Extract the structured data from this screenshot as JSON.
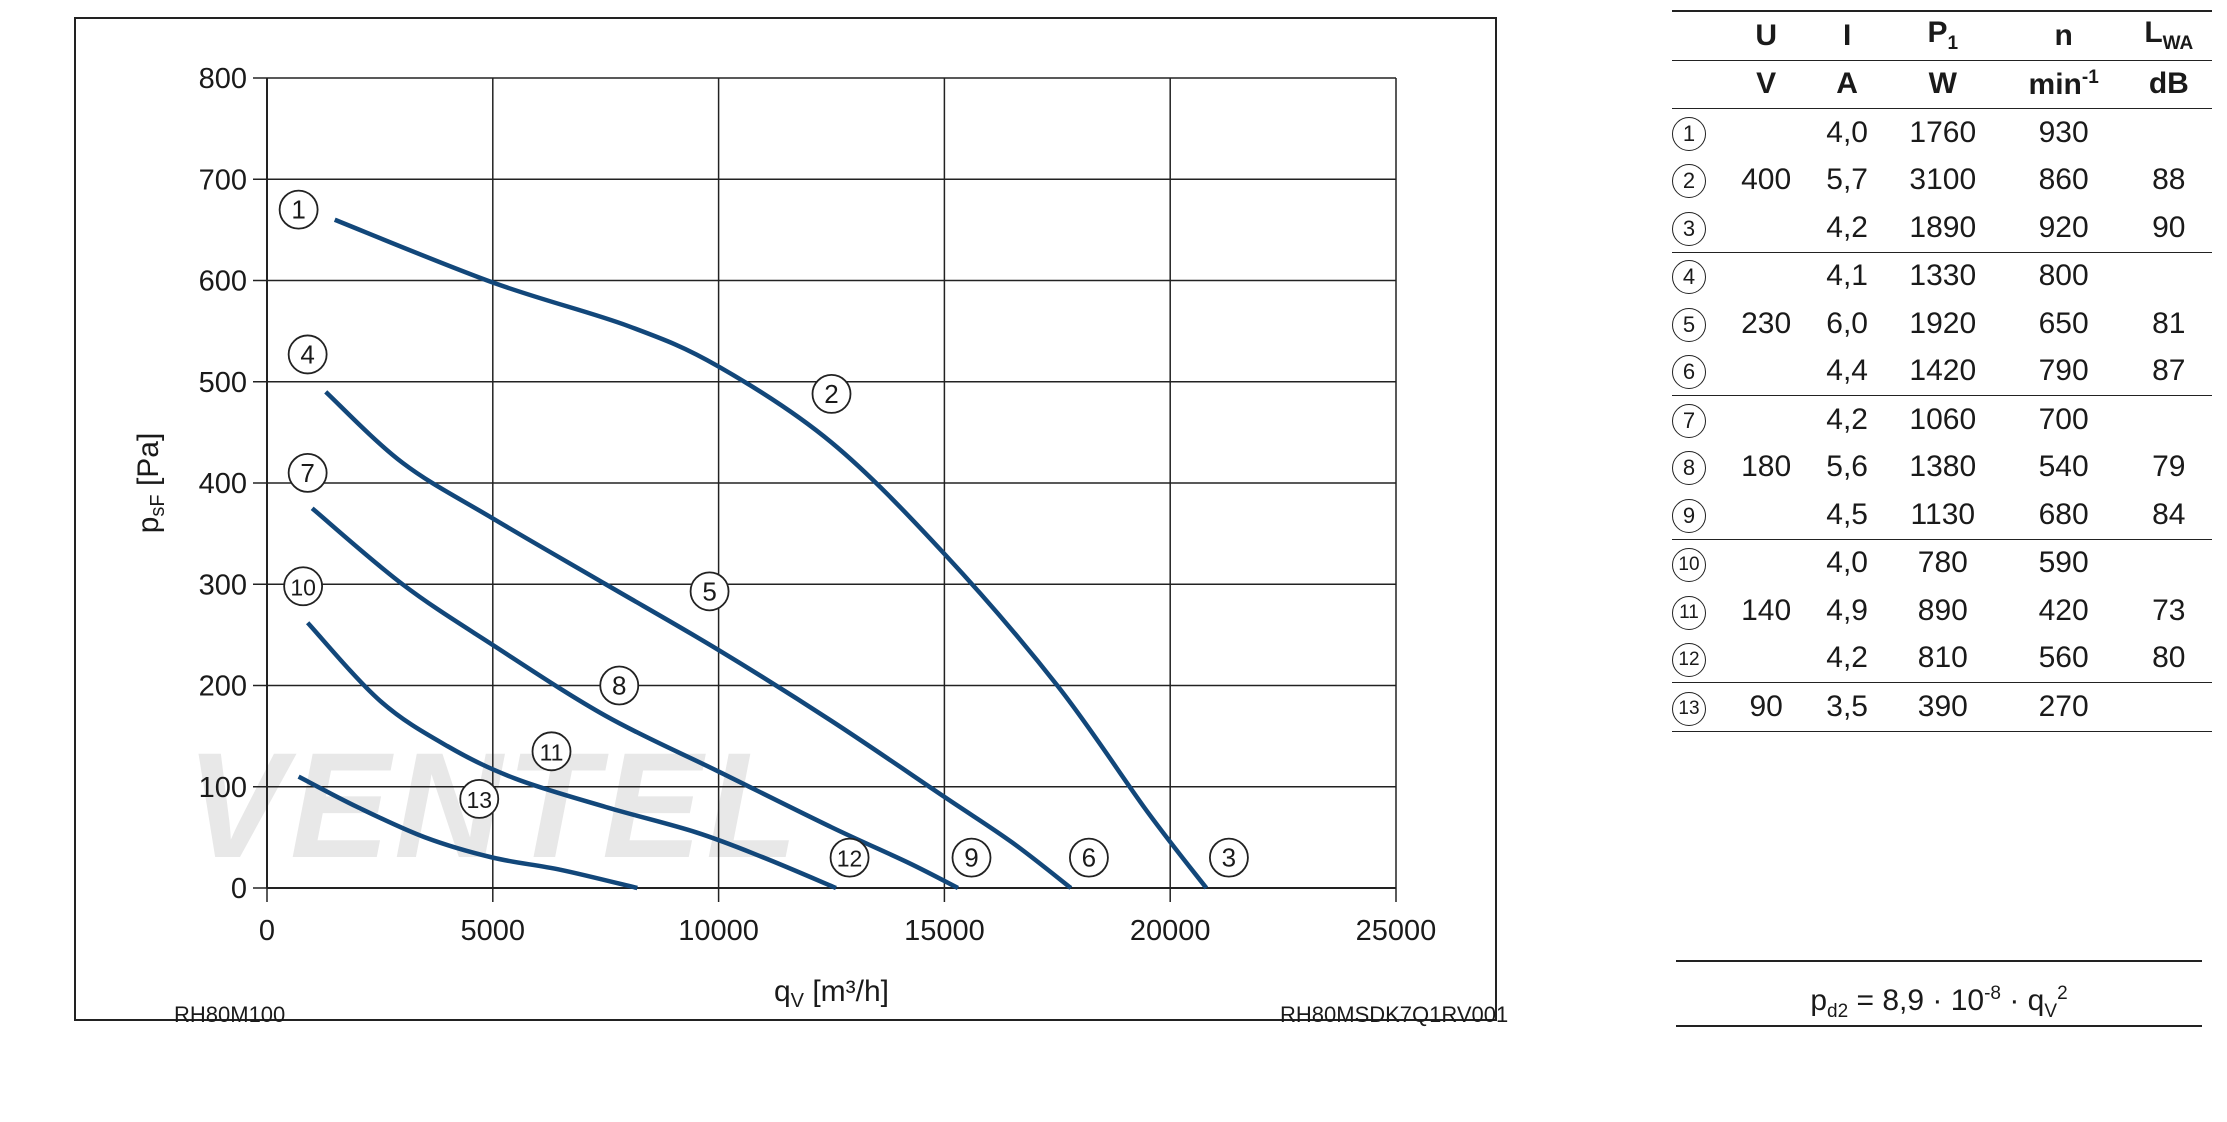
{
  "chart_data": {
    "type": "line",
    "xlabel": "q",
    "xlabel_sub": "V",
    "xlabel_unit": " [m³/h]",
    "ylabel": "p",
    "ylabel_sub": "sF",
    "ylabel_unit": " [Pa]",
    "xlim": [
      0,
      25000
    ],
    "ylim": [
      0,
      800
    ],
    "xticks": [
      0,
      5000,
      10000,
      15000,
      20000,
      25000
    ],
    "yticks": [
      0,
      100,
      200,
      300,
      400,
      500,
      600,
      700,
      800
    ],
    "grid": true,
    "line_color": "#12477a",
    "series": [
      {
        "label": "1",
        "points": [
          [
            1500,
            660
          ],
          [
            5000,
            598
          ],
          [
            8000,
            555
          ],
          [
            10000,
            515
          ],
          [
            12500,
            440
          ],
          [
            15000,
            330
          ],
          [
            17500,
            200
          ],
          [
            19500,
            75
          ],
          [
            20800,
            0
          ]
        ]
      },
      {
        "label": "4",
        "points": [
          [
            1300,
            490
          ],
          [
            3000,
            420
          ],
          [
            5000,
            365
          ],
          [
            7500,
            300
          ],
          [
            10000,
            235
          ],
          [
            12500,
            165
          ],
          [
            15000,
            90
          ],
          [
            16500,
            45
          ],
          [
            17800,
            0
          ]
        ]
      },
      {
        "label": "7",
        "points": [
          [
            1000,
            375
          ],
          [
            3000,
            300
          ],
          [
            5000,
            240
          ],
          [
            7500,
            170
          ],
          [
            10000,
            115
          ],
          [
            12500,
            60
          ],
          [
            14200,
            25
          ],
          [
            15300,
            0
          ]
        ]
      },
      {
        "label": "10",
        "points": [
          [
            900,
            262
          ],
          [
            2500,
            185
          ],
          [
            4000,
            140
          ],
          [
            5500,
            108
          ],
          [
            7500,
            80
          ],
          [
            9500,
            55
          ],
          [
            11000,
            30
          ],
          [
            12600,
            0
          ]
        ]
      },
      {
        "label": "13",
        "points": [
          [
            700,
            110
          ],
          [
            2000,
            80
          ],
          [
            3500,
            50
          ],
          [
            5000,
            30
          ],
          [
            6500,
            18
          ],
          [
            8200,
            0
          ]
        ]
      }
    ],
    "labels": [
      {
        "text": "1",
        "x": 700,
        "y": 670
      },
      {
        "text": "2",
        "x": 12500,
        "y": 488
      },
      {
        "text": "3",
        "x": 21300,
        "y": 30
      },
      {
        "text": "4",
        "x": 900,
        "y": 527
      },
      {
        "text": "5",
        "x": 9800,
        "y": 293
      },
      {
        "text": "6",
        "x": 18200,
        "y": 30
      },
      {
        "text": "7",
        "x": 900,
        "y": 410
      },
      {
        "text": "8",
        "x": 7800,
        "y": 200
      },
      {
        "text": "9",
        "x": 15600,
        "y": 30
      },
      {
        "text": "10",
        "x": 800,
        "y": 298
      },
      {
        "text": "11",
        "x": 6300,
        "y": 135
      },
      {
        "text": "12",
        "x": 12900,
        "y": 30
      },
      {
        "text": "13",
        "x": 4700,
        "y": 88
      }
    ]
  },
  "footer": {
    "left": "RH80M100",
    "right": "RH80MSDK7Q1RV001"
  },
  "watermark": "VENTEL",
  "table": {
    "headers": [
      {
        "main": "U",
        "sub": ""
      },
      {
        "main": "I",
        "sub": ""
      },
      {
        "main": "P",
        "sub": "1"
      },
      {
        "main": "n",
        "sub": ""
      },
      {
        "main": "L",
        "sub": "WA"
      }
    ],
    "units": [
      {
        "main": "V",
        "sup": ""
      },
      {
        "main": "A",
        "sup": ""
      },
      {
        "main": "W",
        "sup": ""
      },
      {
        "main": "min",
        "sup": "-1"
      },
      {
        "main": "dB",
        "sup": ""
      }
    ],
    "rows": [
      {
        "id": "1",
        "U": "",
        "I": "4,0",
        "P": "1760",
        "n": "930",
        "L": ""
      },
      {
        "id": "2",
        "U": "400",
        "I": "5,7",
        "P": "3100",
        "n": "860",
        "L": "88"
      },
      {
        "id": "3",
        "U": "",
        "I": "4,2",
        "P": "1890",
        "n": "920",
        "L": "90"
      },
      {
        "id": "4",
        "U": "",
        "I": "4,1",
        "P": "1330",
        "n": "800",
        "L": ""
      },
      {
        "id": "5",
        "U": "230",
        "I": "6,0",
        "P": "1920",
        "n": "650",
        "L": "81"
      },
      {
        "id": "6",
        "U": "",
        "I": "4,4",
        "P": "1420",
        "n": "790",
        "L": "87"
      },
      {
        "id": "7",
        "U": "",
        "I": "4,2",
        "P": "1060",
        "n": "700",
        "L": ""
      },
      {
        "id": "8",
        "U": "180",
        "I": "5,6",
        "P": "1380",
        "n": "540",
        "L": "79"
      },
      {
        "id": "9",
        "U": "",
        "I": "4,5",
        "P": "1130",
        "n": "680",
        "L": "84"
      },
      {
        "id": "10",
        "U": "",
        "I": "4,0",
        "P": "780",
        "n": "590",
        "L": ""
      },
      {
        "id": "11",
        "U": "140",
        "I": "4,9",
        "P": "890",
        "n": "420",
        "L": "73"
      },
      {
        "id": "12",
        "U": "",
        "I": "4,2",
        "P": "810",
        "n": "560",
        "L": "80"
      },
      {
        "id": "13",
        "U": "90",
        "I": "3,5",
        "P": "390",
        "n": "270",
        "L": ""
      }
    ]
  },
  "formula": {
    "lhs": "p",
    "lhs_sub": "d2",
    "mid": " = 8,9 · 10",
    "exp": "-8",
    "dot": " · q",
    "q_sub": "V",
    "q_sup": "2"
  }
}
